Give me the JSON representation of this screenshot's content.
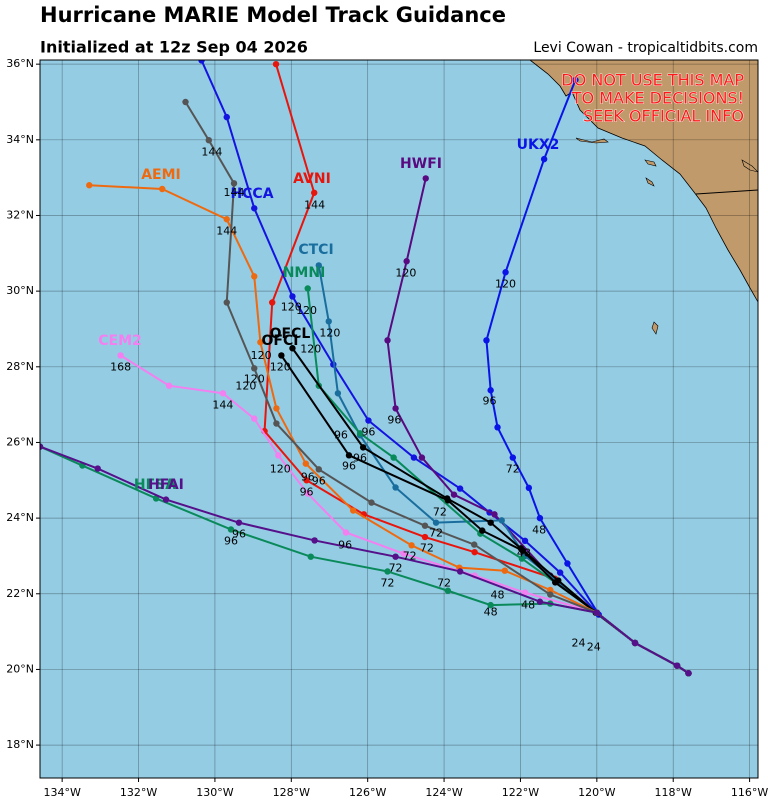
{
  "chart_data": {
    "type": "line",
    "title": "Hurricane MARIE Model Track Guidance",
    "subtitle": "Initialized at 12z Sep 04 2026",
    "credit": "Levi Cowan - tropicaltidbits.com",
    "warning": [
      "DO NOT USE THIS MAP",
      "TO MAKE DECISIONS!",
      "SEEK OFFICIAL INFO"
    ],
    "xlim": [
      -134.58,
      -115.78
    ],
    "ylim": [
      17.13,
      36.11
    ],
    "xticks": [
      {
        "value": -134,
        "label": "134°W"
      },
      {
        "value": -132,
        "label": "132°W"
      },
      {
        "value": -130,
        "label": "130°W"
      },
      {
        "value": -128,
        "label": "128°W"
      },
      {
        "value": -126,
        "label": "126°W"
      },
      {
        "value": -124,
        "label": "124°W"
      },
      {
        "value": -122,
        "label": "122°W"
      },
      {
        "value": -120,
        "label": "120°W"
      },
      {
        "value": -118,
        "label": "118°W"
      },
      {
        "value": -116,
        "label": "116°W"
      }
    ],
    "yticks": [
      {
        "value": 18,
        "label": "18°N"
      },
      {
        "value": 20,
        "label": "20°N"
      },
      {
        "value": 22,
        "label": "22°N"
      },
      {
        "value": 24,
        "label": "24°N"
      },
      {
        "value": 26,
        "label": "26°N"
      },
      {
        "value": 28,
        "label": "28°N"
      },
      {
        "value": 30,
        "label": "30°N"
      },
      {
        "value": 32,
        "label": "32°N"
      },
      {
        "value": 34,
        "label": "34°N"
      },
      {
        "value": 36,
        "label": "36°N"
      }
    ],
    "grid": true,
    "series": [
      {
        "name": "AVNI",
        "color": "#e8150d",
        "x": [
          -117.6,
          -117.9,
          -119.0,
          -120.0,
          -121.1,
          -123.2,
          -124.5,
          -126.1,
          -127.6,
          -128.7,
          -128.5,
          -127.4,
          -128.4
        ],
        "values": [
          19.9,
          20.1,
          20.7,
          21.5,
          22.4,
          23.1,
          23.5,
          24.1,
          25.0,
          26.3,
          29.7,
          32.6,
          36.0
        ]
      },
      {
        "name": "UKX2",
        "color": "#0a14e6",
        "x": [
          -117.6,
          -117.9,
          -119.0,
          -119.95,
          -120.77,
          -121.49,
          -121.78,
          -122.2,
          -122.6,
          -122.78,
          -122.89,
          -122.39,
          -121.38,
          -120.56
        ],
        "values": [
          19.9,
          20.1,
          20.7,
          21.45,
          22.8,
          24.0,
          24.8,
          25.6,
          26.4,
          27.38,
          28.7,
          30.5,
          33.49,
          35.58
        ]
      },
      {
        "name": "HCCA",
        "color": "#1414e0",
        "x": [
          -117.6,
          -117.9,
          -119.0,
          -120.0,
          -120.96,
          -121.88,
          -122.81,
          -123.58,
          -124.79,
          -125.98,
          -126.9,
          -127.97,
          -128.97,
          -129.69,
          -130.35
        ],
        "values": [
          19.9,
          20.1,
          20.7,
          21.5,
          22.56,
          23.4,
          24.15,
          24.78,
          25.6,
          26.58,
          28.06,
          29.86,
          32.19,
          34.6,
          36.1
        ]
      },
      {
        "name": "HWFI",
        "color": "#5a0a80",
        "x": [
          -117.6,
          -117.9,
          -119.0,
          -120.0,
          -121.22,
          -122.68,
          -123.74,
          -124.58,
          -125.27,
          -125.48,
          -124.98,
          -124.48
        ],
        "values": [
          19.9,
          20.1,
          20.7,
          21.5,
          22.48,
          24.1,
          24.62,
          25.6,
          26.9,
          28.7,
          30.79,
          32.98
        ]
      },
      {
        "name": "CTCI",
        "color": "#1a6e9e",
        "x": [
          -117.6,
          -117.9,
          -119.0,
          -120.0,
          -121.88,
          -122.49,
          -124.21,
          -125.27,
          -126.2,
          -126.78,
          -127.02,
          -127.28
        ],
        "values": [
          19.9,
          20.1,
          20.7,
          21.5,
          23.0,
          23.94,
          23.88,
          24.81,
          26.19,
          27.3,
          29.2,
          30.68
        ]
      },
      {
        "name": "NMNI",
        "color": "#088a5a",
        "x": [
          -117.6,
          -117.9,
          -119.0,
          -120.0,
          -121.96,
          -123.05,
          -125.32,
          -126.2,
          -127.28,
          -127.57
        ],
        "values": [
          19.9,
          20.1,
          20.7,
          21.5,
          22.93,
          23.59,
          25.6,
          26.24,
          27.5,
          30.07
        ]
      },
      {
        "name": "OFCL",
        "color": "#000000",
        "x": [
          -117.6,
          -117.9,
          -119.0,
          -120.03,
          -121.01,
          -121.99,
          -122.78,
          -123.92,
          -126.12,
          -127.97
        ],
        "values": [
          19.9,
          20.1,
          20.7,
          21.5,
          22.35,
          23.2,
          23.88,
          24.52,
          25.87,
          28.49
        ]
      },
      {
        "name": "OFCI",
        "color": "#000000",
        "x": [
          -117.6,
          -117.9,
          -119.0,
          -120.0,
          -121.09,
          -121.94,
          -123.0,
          -123.9,
          -126.49,
          -128.26
        ],
        "values": [
          19.9,
          20.1,
          20.7,
          21.5,
          22.3,
          23.14,
          23.67,
          24.47,
          25.66,
          28.3
        ]
      },
      {
        "name": "AEMI",
        "color": "#ee6a10",
        "x": [
          -117.6,
          -117.9,
          -119.0,
          -120.0,
          -121.22,
          -122.41,
          -123.6,
          -124.85,
          -126.38,
          -127.62,
          -128.39,
          -128.81,
          -128.97,
          -129.69,
          -131.38,
          -133.29
        ],
        "values": [
          19.9,
          20.1,
          20.7,
          21.5,
          22.1,
          22.61,
          22.69,
          23.28,
          24.2,
          25.44,
          26.9,
          28.65,
          30.39,
          31.9,
          32.7,
          32.8
        ]
      },
      {
        "name": "CEM2",
        "color": "#f47ff0",
        "x": [
          -117.6,
          -117.9,
          -119.0,
          -120.0,
          -121.88,
          -123.2,
          -125.06,
          -126.57,
          -127.57,
          -128.34,
          -128.97,
          -129.79,
          -131.2,
          -132.47
        ],
        "values": [
          19.9,
          20.1,
          20.7,
          21.5,
          22.03,
          22.48,
          23.06,
          23.62,
          24.65,
          25.66,
          26.63,
          27.3,
          27.5,
          28.3
        ]
      },
      {
        "color": "#555555",
        "x": [
          -117.6,
          -117.9,
          -119.0,
          -120.0,
          -121.22,
          -123.21,
          -124.5,
          -125.9,
          -127.28,
          -128.39,
          -128.97,
          -129.69,
          -129.5,
          -130.16,
          -130.77
        ],
        "values": [
          19.9,
          20.1,
          20.7,
          21.5,
          21.98,
          23.3,
          23.8,
          24.41,
          25.29,
          26.5,
          27.96,
          29.7,
          32.85,
          33.99,
          35.0
        ]
      },
      {
        "name": "HFSA",
        "color": "#0a8a5a",
        "x": [
          -117.6,
          -117.9,
          -119.0,
          -120.0,
          -121.22,
          -122.78,
          -123.9,
          -125.48,
          -127.49,
          -129.58,
          -131.54,
          -133.47,
          -134.58
        ],
        "values": [
          19.9,
          20.1,
          20.7,
          21.5,
          21.74,
          21.7,
          22.08,
          22.59,
          22.98,
          23.7,
          24.52,
          25.39,
          25.89
        ]
      },
      {
        "name": "HFAI",
        "color": "#55108a",
        "x": [
          -117.6,
          -117.9,
          -119.0,
          -120.0,
          -121.49,
          -123.58,
          -125.27,
          -127.39,
          -129.37,
          -131.28,
          -133.07,
          -134.58
        ],
        "values": [
          19.9,
          20.1,
          20.7,
          21.5,
          21.79,
          22.59,
          22.98,
          23.41,
          23.88,
          24.49,
          25.31,
          25.89
        ]
      }
    ],
    "annotations": [
      {
        "text": "144",
        "x": -130.08,
        "y": 33.67
      },
      {
        "text": "144",
        "x": -129.5,
        "y": 32.59
      },
      {
        "text": "144",
        "x": -129.69,
        "y": 31.58
      },
      {
        "text": "144",
        "x": -127.39,
        "y": 32.27
      },
      {
        "text": "144",
        "x": -129.79,
        "y": 26.98
      },
      {
        "text": "168",
        "x": -132.47,
        "y": 27.98
      },
      {
        "text": "120",
        "x": -125.0,
        "y": 30.47
      },
      {
        "text": "120",
        "x": -122.39,
        "y": 30.18
      },
      {
        "text": "120",
        "x": -128.0,
        "y": 29.57
      },
      {
        "text": "120",
        "x": -127.6,
        "y": 29.47
      },
      {
        "text": "120",
        "x": -126.99,
        "y": 28.88
      },
      {
        "text": "120",
        "x": -127.49,
        "y": 28.46
      },
      {
        "text": "120",
        "x": -128.79,
        "y": 28.28
      },
      {
        "text": "120",
        "x": -128.29,
        "y": 27.98
      },
      {
        "text": "120",
        "x": -128.97,
        "y": 27.67
      },
      {
        "text": "120",
        "x": -129.19,
        "y": 27.48
      },
      {
        "text": "120",
        "x": -128.29,
        "y": 25.29
      },
      {
        "text": "96",
        "x": -122.81,
        "y": 27.08
      },
      {
        "text": "96",
        "x": -125.3,
        "y": 26.58
      },
      {
        "text": "96",
        "x": -126.7,
        "y": 26.19
      },
      {
        "text": "96",
        "x": -125.98,
        "y": 26.26
      },
      {
        "text": "96",
        "x": -126.2,
        "y": 25.58
      },
      {
        "text": "96",
        "x": -126.49,
        "y": 25.37
      },
      {
        "text": "96",
        "x": -127.57,
        "y": 25.07
      },
      {
        "text": "96",
        "x": -127.28,
        "y": 24.97
      },
      {
        "text": "96",
        "x": -127.6,
        "y": 24.68
      },
      {
        "text": "96",
        "x": -129.37,
        "y": 23.57
      },
      {
        "text": "96",
        "x": -129.58,
        "y": 23.38
      },
      {
        "text": "96",
        "x": -126.59,
        "y": 23.28
      },
      {
        "text": "72",
        "x": -122.2,
        "y": 25.29
      },
      {
        "text": "72",
        "x": -124.21,
        "y": 23.59
      },
      {
        "text": "72",
        "x": -124.45,
        "y": 23.2
      },
      {
        "text": "72",
        "x": -124.11,
        "y": 24.15
      },
      {
        "text": "72",
        "x": -124.9,
        "y": 22.98
      },
      {
        "text": "72",
        "x": -125.27,
        "y": 22.67
      },
      {
        "text": "72",
        "x": -125.48,
        "y": 22.27
      },
      {
        "text": "72",
        "x": -124.0,
        "y": 22.27
      },
      {
        "text": "48",
        "x": -121.51,
        "y": 23.67
      },
      {
        "text": "48",
        "x": -122.78,
        "y": 21.5
      },
      {
        "text": "48",
        "x": -121.8,
        "y": 21.69
      },
      {
        "text": "48",
        "x": -122.6,
        "y": 21.95
      },
      {
        "text": "48",
        "x": -121.91,
        "y": 23.06
      },
      {
        "text": "24",
        "x": -120.48,
        "y": 20.68
      },
      {
        "text": "24",
        "x": -120.08,
        "y": 20.58
      }
    ]
  }
}
